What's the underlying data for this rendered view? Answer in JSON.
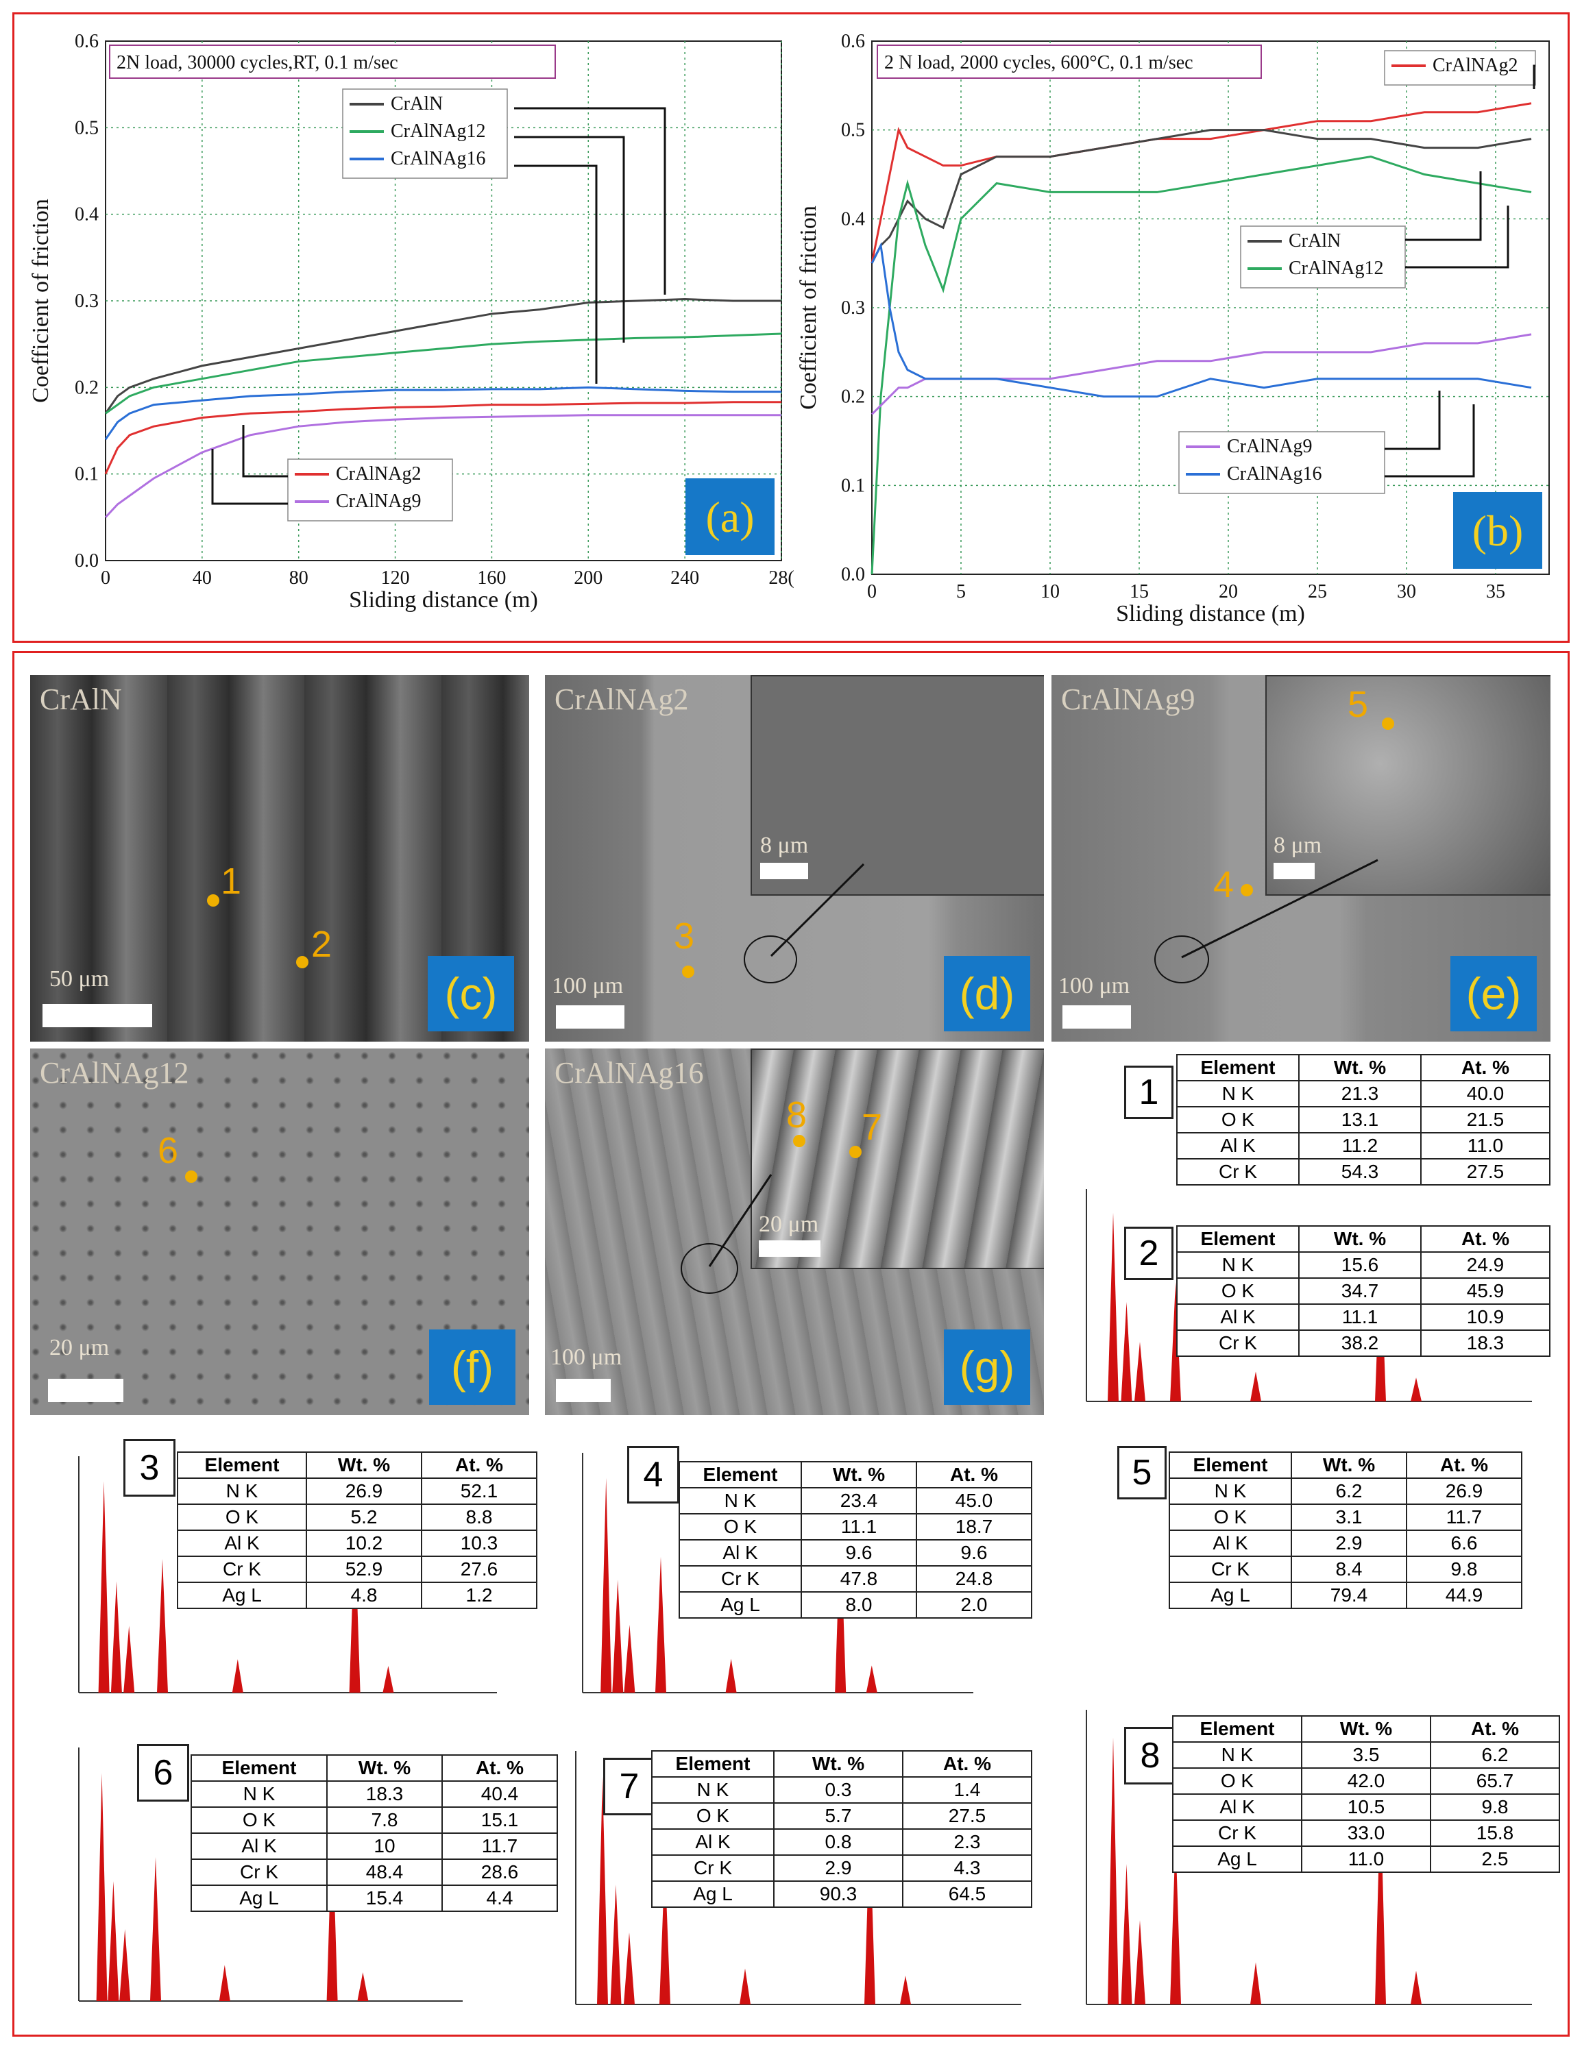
{
  "chart_data": [
    {
      "type": "line",
      "panel": "(a)",
      "title": "2N load, 30000 cycles,RT,  0.1 m/sec",
      "xlabel": "Sliding distance (m)",
      "ylabel": "Coefficient of friction",
      "xlim": [
        0,
        280
      ],
      "ylim": [
        0.0,
        0.6
      ],
      "xticks": [
        "0",
        "40",
        "80",
        "120",
        "160",
        "200",
        "240",
        "28("
      ],
      "yticks": [
        "0.0",
        "0.1",
        "0.2",
        "0.3",
        "0.4",
        "0.5",
        "0.6"
      ],
      "grid": true,
      "legend": [
        {
          "name": "CrAlN",
          "color": "#444444"
        },
        {
          "name": "CrAlNAg12",
          "color": "#2eaa60"
        },
        {
          "name": "CrAlNAg16",
          "color": "#2a6fd6"
        },
        {
          "name": "CrAlNAg2",
          "color": "#e03030"
        },
        {
          "name": "CrAlNAg9",
          "color": "#b070e0"
        }
      ],
      "series": [
        {
          "name": "CrAlN",
          "color": "#444444",
          "x": [
            0,
            5,
            10,
            20,
            40,
            60,
            80,
            100,
            120,
            140,
            160,
            180,
            200,
            220,
            240,
            260,
            280
          ],
          "y": [
            0.17,
            0.19,
            0.2,
            0.21,
            0.225,
            0.235,
            0.245,
            0.255,
            0.265,
            0.275,
            0.285,
            0.29,
            0.298,
            0.3,
            0.302,
            0.3,
            0.3
          ]
        },
        {
          "name": "CrAlNAg12",
          "color": "#2eaa60",
          "x": [
            0,
            5,
            10,
            20,
            40,
            60,
            80,
            100,
            120,
            140,
            160,
            180,
            200,
            220,
            240,
            260,
            280
          ],
          "y": [
            0.17,
            0.18,
            0.19,
            0.2,
            0.21,
            0.22,
            0.23,
            0.235,
            0.24,
            0.245,
            0.25,
            0.253,
            0.255,
            0.257,
            0.258,
            0.26,
            0.262
          ]
        },
        {
          "name": "CrAlNAg16",
          "color": "#2a6fd6",
          "x": [
            0,
            5,
            10,
            20,
            40,
            60,
            80,
            100,
            120,
            140,
            160,
            180,
            200,
            220,
            240,
            260,
            280
          ],
          "y": [
            0.14,
            0.16,
            0.17,
            0.18,
            0.185,
            0.19,
            0.192,
            0.195,
            0.197,
            0.197,
            0.198,
            0.198,
            0.2,
            0.198,
            0.196,
            0.195,
            0.195
          ]
        },
        {
          "name": "CrAlNAg2",
          "color": "#e03030",
          "x": [
            0,
            5,
            10,
            20,
            40,
            60,
            80,
            100,
            120,
            140,
            160,
            180,
            200,
            220,
            240,
            260,
            280
          ],
          "y": [
            0.1,
            0.13,
            0.145,
            0.155,
            0.165,
            0.17,
            0.172,
            0.175,
            0.177,
            0.178,
            0.18,
            0.18,
            0.181,
            0.182,
            0.182,
            0.183,
            0.183
          ]
        },
        {
          "name": "CrAlNAg9",
          "color": "#b070e0",
          "x": [
            0,
            5,
            10,
            20,
            40,
            60,
            80,
            100,
            120,
            140,
            160,
            180,
            200,
            220,
            240,
            260,
            280
          ],
          "y": [
            0.05,
            0.065,
            0.075,
            0.095,
            0.125,
            0.145,
            0.155,
            0.16,
            0.163,
            0.165,
            0.166,
            0.167,
            0.168,
            0.168,
            0.168,
            0.168,
            0.168
          ]
        }
      ]
    },
    {
      "type": "line",
      "panel": "(b)",
      "title": "2 N load, 2000 cycles, 600°C, 0.1 m/sec",
      "xlabel": "Sliding distance (m)",
      "ylabel": "Coefficient of friction",
      "xlim": [
        0,
        38
      ],
      "ylim": [
        0.0,
        0.6
      ],
      "xticks": [
        "0",
        "5",
        "10",
        "15",
        "20",
        "25",
        "30",
        "35"
      ],
      "yticks": [
        "0.0",
        "0.1",
        "0.2",
        "0.3",
        "0.4",
        "0.5",
        "0.6"
      ],
      "grid": true,
      "legend": [
        {
          "name": "CrAlNAg2",
          "color": "#e03030"
        },
        {
          "name": "CrAlN",
          "color": "#444444"
        },
        {
          "name": "CrAlNAg12",
          "color": "#2eaa60"
        },
        {
          "name": "CrAlNAg9",
          "color": "#b070e0"
        },
        {
          "name": "CrAlNAg16",
          "color": "#2a6fd6"
        }
      ],
      "series": [
        {
          "name": "CrAlNAg2",
          "color": "#e03030",
          "x": [
            0,
            0.5,
            1,
            1.5,
            2,
            3,
            4,
            5,
            7,
            10,
            13,
            16,
            19,
            22,
            25,
            28,
            31,
            34,
            37
          ],
          "y": [
            0.35,
            0.4,
            0.45,
            0.5,
            0.48,
            0.47,
            0.46,
            0.46,
            0.47,
            0.47,
            0.48,
            0.49,
            0.49,
            0.5,
            0.51,
            0.51,
            0.52,
            0.52,
            0.53
          ]
        },
        {
          "name": "CrAlN",
          "color": "#444444",
          "x": [
            0,
            0.5,
            1,
            1.5,
            2,
            3,
            4,
            5,
            7,
            10,
            13,
            16,
            19,
            22,
            25,
            28,
            31,
            34,
            37
          ],
          "y": [
            0.35,
            0.37,
            0.38,
            0.4,
            0.42,
            0.4,
            0.39,
            0.45,
            0.47,
            0.47,
            0.48,
            0.49,
            0.5,
            0.5,
            0.49,
            0.49,
            0.48,
            0.48,
            0.49
          ]
        },
        {
          "name": "CrAlNAg12",
          "color": "#2eaa60",
          "x": [
            0,
            0.5,
            1,
            1.5,
            2,
            3,
            4,
            5,
            7,
            10,
            13,
            16,
            19,
            22,
            25,
            28,
            31,
            34,
            37
          ],
          "y": [
            0.0,
            0.2,
            0.3,
            0.4,
            0.44,
            0.37,
            0.32,
            0.4,
            0.44,
            0.43,
            0.43,
            0.43,
            0.44,
            0.45,
            0.46,
            0.47,
            0.45,
            0.44,
            0.43
          ]
        },
        {
          "name": "CrAlNAg9",
          "color": "#b070e0",
          "x": [
            0,
            0.5,
            1,
            1.5,
            2,
            3,
            4,
            5,
            7,
            10,
            13,
            16,
            19,
            22,
            25,
            28,
            31,
            34,
            37
          ],
          "y": [
            0.18,
            0.19,
            0.2,
            0.21,
            0.21,
            0.22,
            0.22,
            0.22,
            0.22,
            0.22,
            0.23,
            0.24,
            0.24,
            0.25,
            0.25,
            0.25,
            0.26,
            0.26,
            0.27
          ]
        },
        {
          "name": "CrAlNAg16",
          "color": "#2a6fd6",
          "x": [
            0,
            0.5,
            1,
            1.5,
            2,
            3,
            4,
            5,
            7,
            10,
            13,
            16,
            19,
            22,
            25,
            28,
            31,
            34,
            37
          ],
          "y": [
            0.35,
            0.37,
            0.3,
            0.25,
            0.23,
            0.22,
            0.22,
            0.22,
            0.22,
            0.21,
            0.2,
            0.2,
            0.22,
            0.21,
            0.22,
            0.22,
            0.22,
            0.22,
            0.21
          ]
        }
      ]
    }
  ],
  "panels": {
    "c": {
      "tag": "(c)",
      "label": "CrAlN",
      "scale": "50 μm",
      "spots": [
        "1",
        "2"
      ]
    },
    "d": {
      "tag": "(d)",
      "label": "CrAlNAg2",
      "scale": "100 μm",
      "inset_scale": "8 μm",
      "spots": [
        "3"
      ]
    },
    "e": {
      "tag": "(e)",
      "label": "CrAlNAg9",
      "scale": "100 μm",
      "inset_scale": "8 μm",
      "spots": [
        "4",
        "5"
      ]
    },
    "f": {
      "tag": "(f)",
      "label": "CrAlNAg12",
      "scale": "20 μm",
      "spots": [
        "6"
      ]
    },
    "g": {
      "tag": "(g)",
      "label": "CrAlNAg16",
      "scale": "100 μm",
      "inset_scale": "20 μm",
      "spots": [
        "8",
        "7"
      ]
    }
  },
  "eds_headers": [
    "Element",
    "Wt. %",
    "At. %"
  ],
  "eds_tables": [
    {
      "spot": "1",
      "rows": [
        [
          "N  K",
          "21.3",
          "40.0"
        ],
        [
          "O  K",
          "13.1",
          "21.5"
        ],
        [
          "Al K",
          "11.2",
          "11.0"
        ],
        [
          "Cr K",
          "54.3",
          "27.5"
        ]
      ]
    },
    {
      "spot": "2",
      "rows": [
        [
          "N  K",
          "15.6",
          "24.9"
        ],
        [
          "O  K",
          "34.7",
          "45.9"
        ],
        [
          "Al K",
          "11.1",
          "10.9"
        ],
        [
          "Cr K",
          "38.2",
          "18.3"
        ]
      ]
    },
    {
      "spot": "3",
      "rows": [
        [
          "N  K",
          "26.9",
          "52.1"
        ],
        [
          "O  K",
          "5.2",
          "8.8"
        ],
        [
          "Al K",
          "10.2",
          "10.3"
        ],
        [
          "Cr K",
          "52.9",
          "27.6"
        ],
        [
          "Ag L",
          "4.8",
          "1.2"
        ]
      ]
    },
    {
      "spot": "4",
      "rows": [
        [
          "N  K",
          "23.4",
          "45.0"
        ],
        [
          "O  K",
          "11.1",
          "18.7"
        ],
        [
          "Al K",
          "9.6",
          "9.6"
        ],
        [
          "Cr K",
          "47.8",
          "24.8"
        ],
        [
          "Ag L",
          "8.0",
          "2.0"
        ]
      ]
    },
    {
      "spot": "5",
      "rows": [
        [
          "N  K",
          "6.2",
          "26.9"
        ],
        [
          "O  K",
          "3.1",
          "11.7"
        ],
        [
          "Al K",
          "2.9",
          "6.6"
        ],
        [
          "Cr K",
          "8.4",
          "9.8"
        ],
        [
          "Ag L",
          "79.4",
          "44.9"
        ]
      ]
    },
    {
      "spot": "6",
      "rows": [
        [
          "N  K",
          "18.3",
          "40.4"
        ],
        [
          "O  K",
          "7.8",
          "15.1"
        ],
        [
          "Al K",
          "10",
          "11.7"
        ],
        [
          "Cr K",
          "48.4",
          "28.6"
        ],
        [
          "Ag L",
          "15.4",
          "4.4"
        ]
      ]
    },
    {
      "spot": "7",
      "rows": [
        [
          "N  K",
          "0.3",
          "1.4"
        ],
        [
          "O  K",
          "5.7",
          "27.5"
        ],
        [
          "Al K",
          "0.8",
          "2.3"
        ],
        [
          "Cr K",
          "2.9",
          "4.3"
        ],
        [
          "Ag L",
          "90.3",
          "64.5"
        ]
      ]
    },
    {
      "spot": "8",
      "rows": [
        [
          "N  K",
          "3.5",
          "6.2"
        ],
        [
          "O  K",
          "42.0",
          "65.7"
        ],
        [
          "Al K",
          "10.5",
          "9.8"
        ],
        [
          "Cr K",
          "33.0",
          "15.8"
        ],
        [
          "Ag L",
          "11.0",
          "2.5"
        ]
      ]
    }
  ],
  "colors": {
    "frame": "#e02020",
    "tag_bg": "#1678c8",
    "tag_fg": "#f4d020",
    "spot": "#f0a800",
    "eds": "#d01010"
  }
}
